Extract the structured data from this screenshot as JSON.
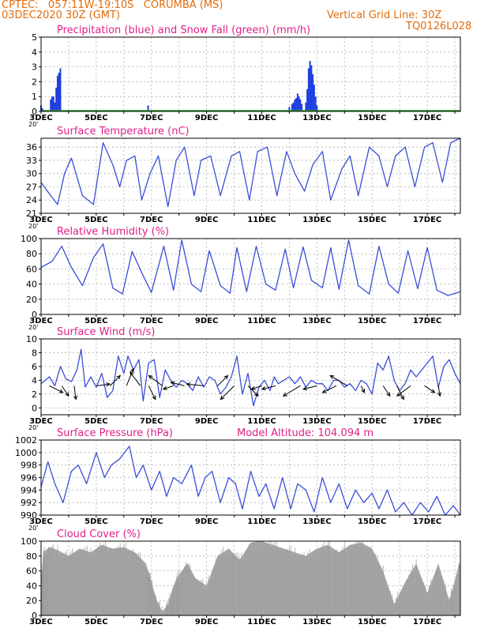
{
  "header": {
    "line1_left": "CPTEC:   057:11W-19:10S   CORUMBA (MS)",
    "line2_left": "03DEC2020 30Z (GMT)",
    "line2_right": "Vertical Grid Line: 30Z",
    "line3_right": "TQ0126L028"
  },
  "colors": {
    "header": "#e46c0a",
    "title": "#e0208a",
    "line": "#3a4fd8",
    "precip": "#1f3fe0",
    "snow": "#2aa02a",
    "cloud": "#a6a6a6",
    "grid": "#b0b0b0",
    "arrow": "#000000"
  },
  "x_axis": {
    "ticks": [
      "3DEC",
      "5DEC",
      "7DEC",
      "9DEC",
      "11DEC",
      "13DEC",
      "15DEC",
      "17DEC"
    ],
    "tick_days": [
      0,
      2,
      4,
      6,
      8,
      10,
      12,
      14
    ],
    "range_days": [
      0,
      15.2
    ],
    "under_label": "20’"
  },
  "chart_data": [
    {
      "type": "bar",
      "title": "Precipitation (blue) and Snow Fall (green) (mm/h)",
      "ylim": [
        0,
        5
      ],
      "yticks": [
        0,
        1,
        2,
        3,
        4,
        5
      ],
      "grid": true,
      "series": [
        {
          "name": "Precipitation",
          "x": [
            0.0,
            0.05,
            0.1,
            0.35,
            0.4,
            0.45,
            0.5,
            0.55,
            0.6,
            0.65,
            0.7,
            3.88,
            8.9,
            9.0,
            9.1,
            9.15,
            9.2,
            9.25,
            9.3,
            9.35,
            9.4,
            9.45,
            9.6,
            9.65,
            9.7,
            9.75,
            9.8,
            9.85,
            9.9,
            9.95,
            10.0
          ],
          "values": [
            0.4,
            0.2,
            0.1,
            0.8,
            1.0,
            1.0,
            0.6,
            1.6,
            2.4,
            2.6,
            2.9,
            0.4,
            0.1,
            0.3,
            0.5,
            0.6,
            0.8,
            0.9,
            1.2,
            1.0,
            0.8,
            0.5,
            0.6,
            1.5,
            2.9,
            3.4,
            3.1,
            2.5,
            1.8,
            1.0,
            0.4
          ]
        },
        {
          "name": "Snow Fall",
          "x": [],
          "values": []
        }
      ]
    },
    {
      "type": "line",
      "title": "Surface Temperature (nC)",
      "ylim": [
        21,
        38
      ],
      "yticks": [
        21,
        24,
        27,
        30,
        33,
        36
      ],
      "grid": true,
      "x": [
        0,
        0.35,
        0.6,
        0.85,
        1.1,
        1.5,
        1.9,
        2.25,
        2.6,
        2.85,
        3.1,
        3.4,
        3.65,
        3.95,
        4.25,
        4.6,
        4.9,
        5.2,
        5.55,
        5.8,
        6.15,
        6.5,
        6.9,
        7.2,
        7.55,
        7.85,
        8.2,
        8.55,
        8.9,
        9.2,
        9.55,
        9.85,
        10.2,
        10.5,
        10.9,
        11.2,
        11.5,
        11.9,
        12.25,
        12.55,
        12.85,
        13.2,
        13.55,
        13.9,
        14.2,
        14.55,
        14.85,
        15.2
      ],
      "values": [
        28,
        25,
        23,
        30,
        33.5,
        25,
        23,
        37,
        32,
        27,
        33,
        34,
        24,
        30,
        34,
        22.5,
        33,
        36,
        25,
        33,
        34,
        25,
        34,
        35,
        24,
        35,
        36,
        25,
        35,
        30,
        26,
        32,
        35,
        24,
        31,
        34,
        25,
        36,
        34,
        27,
        34,
        36,
        27,
        36,
        37,
        28,
        37,
        38
      ]
    },
    {
      "type": "line",
      "title": "Relative Humidity (%)",
      "ylim": [
        0,
        100
      ],
      "yticks": [
        0,
        20,
        40,
        60,
        80,
        100
      ],
      "grid": true,
      "x": [
        0,
        0.4,
        0.75,
        1.1,
        1.5,
        1.9,
        2.25,
        2.6,
        2.95,
        3.3,
        3.65,
        4.0,
        4.45,
        4.8,
        5.1,
        5.45,
        5.8,
        6.1,
        6.5,
        6.85,
        7.1,
        7.45,
        7.8,
        8.15,
        8.5,
        8.85,
        9.15,
        9.5,
        9.8,
        10.2,
        10.5,
        10.8,
        11.15,
        11.5,
        11.9,
        12.25,
        12.6,
        12.95,
        13.3,
        13.65,
        14.0,
        14.35,
        14.75,
        15.2
      ],
      "values": [
        62,
        70,
        90,
        62,
        38,
        75,
        93,
        35,
        27,
        83,
        55,
        29,
        90,
        32,
        98,
        40,
        30,
        84,
        38,
        28,
        88,
        30,
        90,
        40,
        32,
        86,
        35,
        89,
        45,
        35,
        88,
        33,
        98,
        38,
        27,
        90,
        40,
        28,
        84,
        34,
        88,
        32,
        25,
        30
      ]
    },
    {
      "type": "line",
      "title": "Surface Wind (m/s)",
      "ylim": [
        -1,
        10
      ],
      "yticks": [
        0,
        2,
        4,
        6,
        8,
        10
      ],
      "grid": true,
      "x": [
        0,
        0.3,
        0.5,
        0.7,
        0.9,
        1.1,
        1.3,
        1.45,
        1.6,
        1.8,
        2.0,
        2.2,
        2.4,
        2.6,
        2.8,
        3.0,
        3.15,
        3.35,
        3.55,
        3.7,
        3.9,
        4.1,
        4.3,
        4.5,
        4.7,
        4.9,
        5.1,
        5.3,
        5.5,
        5.7,
        5.9,
        6.1,
        6.3,
        6.5,
        6.7,
        6.9,
        7.1,
        7.3,
        7.5,
        7.7,
        7.9,
        8.1,
        8.3,
        8.45,
        8.6,
        8.8,
        9.0,
        9.2,
        9.4,
        9.6,
        9.8,
        10.0,
        10.2,
        10.4,
        10.6,
        10.8,
        11.0,
        11.2,
        11.4,
        11.6,
        11.8,
        12.0,
        12.2,
        12.4,
        12.6,
        12.8,
        13.0,
        13.2,
        13.4,
        13.6,
        13.8,
        14.0,
        14.2,
        14.4,
        14.6,
        14.8,
        15.0,
        15.2
      ],
      "values": [
        3.5,
        4.5,
        3.2,
        6.0,
        4.2,
        3.8,
        5.5,
        8.5,
        3.0,
        4.5,
        3.0,
        5.0,
        1.5,
        2.5,
        7.5,
        5.0,
        7.5,
        5.5,
        7.0,
        1.0,
        6.5,
        7.0,
        1.5,
        5.5,
        4.0,
        3.0,
        4.0,
        3.5,
        2.5,
        4.5,
        3.0,
        4.5,
        4.0,
        2.0,
        3.0,
        4.5,
        7.5,
        2.0,
        5.0,
        0.3,
        3.0,
        4.0,
        2.5,
        4.5,
        3.5,
        4.0,
        4.5,
        3.5,
        4.5,
        3.0,
        4.0,
        3.5,
        3.5,
        2.5,
        4.0,
        4.0,
        3.0,
        3.5,
        2.5,
        4.0,
        3.5,
        2.0,
        6.5,
        5.5,
        7.5,
        4.0,
        2.5,
        3.5,
        5.5,
        4.5,
        5.5,
        6.5,
        7.5,
        3.0,
        6.0,
        7.0,
        5.0,
        3.5
      ]
    },
    {
      "type": "line",
      "title": "Surface Pressure (hPa)",
      "subtitle": "Model Altitude: 104.094  m",
      "ylim": [
        990,
        1002
      ],
      "yticks": [
        990,
        992,
        994,
        996,
        998,
        1000,
        1002
      ],
      "grid": true,
      "x": [
        0,
        0.25,
        0.5,
        0.8,
        1.1,
        1.35,
        1.65,
        2.0,
        2.3,
        2.55,
        2.85,
        3.2,
        3.45,
        3.7,
        4.0,
        4.3,
        4.55,
        4.8,
        5.1,
        5.45,
        5.7,
        5.95,
        6.2,
        6.5,
        6.8,
        7.05,
        7.3,
        7.6,
        7.9,
        8.15,
        8.45,
        8.75,
        9.05,
        9.3,
        9.6,
        9.9,
        10.2,
        10.5,
        10.8,
        11.1,
        11.4,
        11.7,
        12.0,
        12.25,
        12.55,
        12.85,
        13.15,
        13.45,
        13.75,
        14.05,
        14.35,
        14.65,
        14.95,
        15.2
      ],
      "values": [
        994.5,
        998.5,
        995,
        992,
        997,
        998,
        995,
        1000,
        996,
        998,
        999,
        1001,
        996,
        998,
        994,
        997,
        993,
        996,
        995,
        998,
        993,
        996,
        997,
        992,
        996,
        995,
        991,
        997,
        993,
        995,
        991,
        996,
        991,
        995,
        994,
        990.5,
        996,
        992,
        995,
        991,
        994,
        992,
        993.5,
        991,
        994,
        990.5,
        992,
        990,
        992,
        990.5,
        993,
        990,
        991.5,
        990
      ]
    },
    {
      "type": "area",
      "title": "Cloud Cover (%)",
      "ylim": [
        0,
        100
      ],
      "yticks": [
        0,
        20,
        40,
        60,
        80,
        100
      ],
      "grid": true,
      "x": [
        0,
        0.1,
        0.3,
        0.6,
        1.0,
        1.4,
        1.8,
        2.2,
        2.6,
        3.0,
        3.4,
        3.8,
        4.0,
        4.2,
        4.4,
        4.6,
        4.8,
        5.0,
        5.3,
        5.6,
        6.0,
        6.4,
        6.8,
        7.2,
        7.6,
        8.0,
        8.4,
        8.8,
        9.2,
        9.6,
        10.0,
        10.4,
        10.8,
        11.2,
        11.6,
        12.0,
        12.4,
        12.8,
        13.2,
        13.6,
        14.0,
        14.4,
        14.8,
        15.2
      ],
      "values": [
        50,
        85,
        92,
        88,
        80,
        90,
        85,
        95,
        90,
        92,
        85,
        70,
        45,
        20,
        5,
        15,
        40,
        55,
        70,
        50,
        40,
        80,
        90,
        75,
        98,
        100,
        95,
        90,
        85,
        80,
        90,
        95,
        85,
        95,
        98,
        90,
        60,
        15,
        45,
        70,
        30,
        70,
        20,
        75
      ]
    }
  ],
  "wind_arrows": {
    "days": [
      0.3,
      0.75,
      1.2,
      2.0,
      2.5,
      3.1,
      3.6,
      3.9,
      4.4,
      4.8,
      5.2,
      5.9,
      6.4,
      7.0,
      7.5,
      8.0,
      8.5,
      9.4,
      10.0,
      10.7,
      11.1,
      11.6,
      12.4,
      12.9,
      13.4,
      13.9,
      14.4
    ],
    "u": [
      4,
      2,
      0.5,
      4,
      3,
      2,
      -3,
      2,
      -4,
      -3,
      -4,
      -5,
      3,
      -4,
      3,
      -3,
      -4,
      -5,
      -4,
      -4,
      -5,
      1,
      2,
      2,
      -4,
      3,
      0.5
    ],
    "v": [
      -2,
      -3,
      -4,
      0.5,
      3,
      5,
      4,
      -4,
      3,
      -1,
      1,
      0.5,
      3,
      -4,
      -3,
      -1,
      -1,
      -3,
      -1,
      -2,
      3,
      -2,
      -3,
      -4,
      -3,
      -2,
      -3
    ]
  }
}
